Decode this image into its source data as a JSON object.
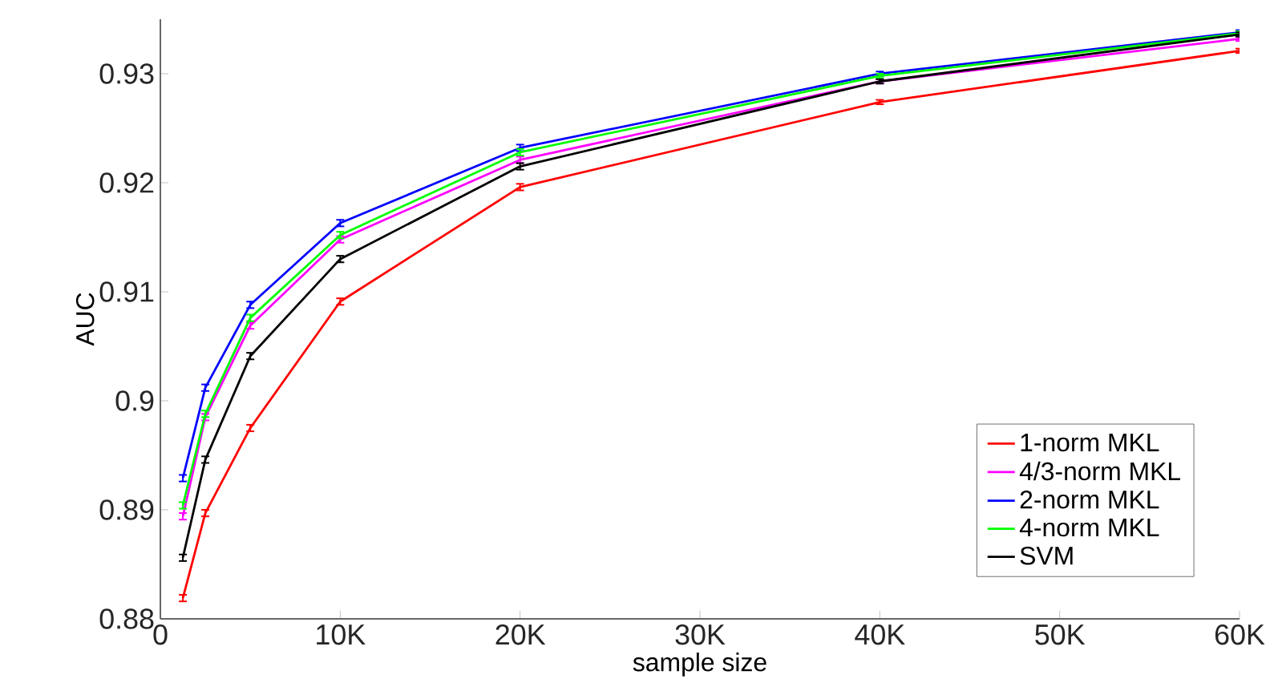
{
  "chart_data": {
    "type": "line",
    "xlabel": "sample size",
    "ylabel": "AUC",
    "x": [
      1250,
      2500,
      5000,
      10000,
      20000,
      40000,
      60000
    ],
    "xlim": [
      0,
      60000
    ],
    "ylim": [
      0.88,
      0.935
    ],
    "xticks": [
      0,
      {
        "value": 10000,
        "label": "10K"
      },
      {
        "value": 20000,
        "label": "20K"
      },
      {
        "value": 30000,
        "label": "30K"
      },
      {
        "value": 40000,
        "label": "40K"
      },
      {
        "value": 50000,
        "label": "50K"
      },
      {
        "value": 60000,
        "label": "60K"
      }
    ],
    "yticks": [
      0.88,
      0.89,
      0.9,
      0.91,
      0.92,
      0.93
    ],
    "grid": false,
    "legend": "bottom right",
    "series": [
      {
        "name": "1-norm MKL",
        "color": "#ff0000",
        "values": [
          0.8819,
          0.8897,
          0.8975,
          0.9091,
          0.9196,
          0.9274,
          0.9321
        ],
        "errors": [
          0.0003,
          0.0003,
          0.0003,
          0.0003,
          0.0003,
          0.0002,
          0.0002
        ]
      },
      {
        "name": "4/3-norm MKL",
        "color": "#ff00ff",
        "values": [
          0.8894,
          0.8985,
          0.9069,
          0.9148,
          0.9221,
          0.9293,
          0.9332
        ],
        "errors": [
          0.0003,
          0.0003,
          0.0003,
          0.0003,
          0.0003,
          0.0002,
          0.0002
        ]
      },
      {
        "name": "2-norm MKL",
        "color": "#0000ff",
        "values": [
          0.8929,
          0.9012,
          0.9088,
          0.9163,
          0.9232,
          0.93,
          0.9338
        ],
        "errors": [
          0.0003,
          0.0003,
          0.0003,
          0.0003,
          0.0003,
          0.0002,
          0.0002
        ]
      },
      {
        "name": "4-norm MKL",
        "color": "#00ff00",
        "values": [
          0.8904,
          0.8988,
          0.9076,
          0.9152,
          0.9228,
          0.9298,
          0.9337
        ],
        "errors": [
          0.0003,
          0.0003,
          0.0003,
          0.0003,
          0.0003,
          0.0002,
          0.0002
        ]
      },
      {
        "name": "SVM",
        "color": "#000000",
        "values": [
          0.8856,
          0.8946,
          0.9041,
          0.913,
          0.9215,
          0.9293,
          0.9336
        ],
        "errors": [
          0.0003,
          0.0003,
          0.0003,
          0.0003,
          0.0003,
          0.0002,
          0.0002
        ]
      }
    ]
  }
}
